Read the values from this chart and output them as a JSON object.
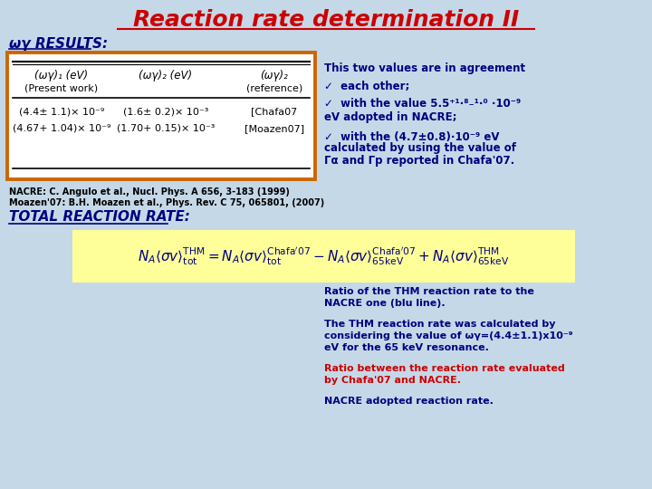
{
  "background_color": "#c5d8e8",
  "title": "Reaction rate determination II",
  "title_color": "#cc0000",
  "title_fontsize": 18,
  "section1_label": "ωγ RESULTS:",
  "section1_color": "#000080",
  "section1_fontsize": 11,
  "table_box_color": "#cc6600",
  "table_header1": "(ωγ)₁ (eV)",
  "table_header2": "(ωγ)₂ (eV)",
  "table_header3": "(ωγ)₂",
  "table_sub1": "(Present work)",
  "table_sub2": "(reference)",
  "table_row1_c1": "(4.4± 1.1)× 10⁻⁹",
  "table_row1_c2": "(1.6± 0.2)× 10⁻³",
  "table_row1_c3": "[Chafa07",
  "table_row2_c1": "(4.67+ 1.04)× 10⁻⁹",
  "table_row2_c2": "(1.70+ 0.15)× 10⁻³",
  "table_row2_c3": "[Moazen07]",
  "ref1": "NACRE: C. Angulo et al., Nucl. Phys. A 656, 3-183 (1999)",
  "ref2": "Moazen'07: B.H. Moazen et al., Phys. Rev. C 75, 065801, (2007)",
  "ref_fontsize": 7,
  "ref_color": "#000000",
  "section2_label": "TOTAL REACTION RATE:",
  "section2_color": "#000080",
  "section2_fontsize": 11,
  "formula_bg": "#ffff99",
  "right_text1": "This two values are in agreement",
  "right_text2": "✓  each other;",
  "right_text3": "✓  with the value 5.5⁺¹·⁸₋¹·⁰ ·10⁻⁹",
  "right_text3b": "eV adopted in NACRE;",
  "right_text4a": "✓  with the (4.7±0.8)·10⁻⁹ eV",
  "right_text4b": "calculated by using the value of",
  "right_text4c": "Γα and Γp reported in Chafa'07.",
  "bottom_text1a": "Ratio of the THM reaction rate to the",
  "bottom_text1b": "NACRE one (blu line).",
  "bottom_text2a": "The THM reaction rate was calculated by",
  "bottom_text2b": "considering the value of ωγ=(4.4±1.1)x10⁻⁹",
  "bottom_text2c": "eV for the 65 keV resonance.",
  "bottom_text3a": "Ratio between the reaction rate evaluated",
  "bottom_text3b": "by Chafa'07 and NACRE.",
  "bottom_text4": "NACRE adopted reaction rate.",
  "dark_blue": "#000080",
  "red_color": "#cc0000",
  "black": "#000000",
  "white": "#ffffff"
}
